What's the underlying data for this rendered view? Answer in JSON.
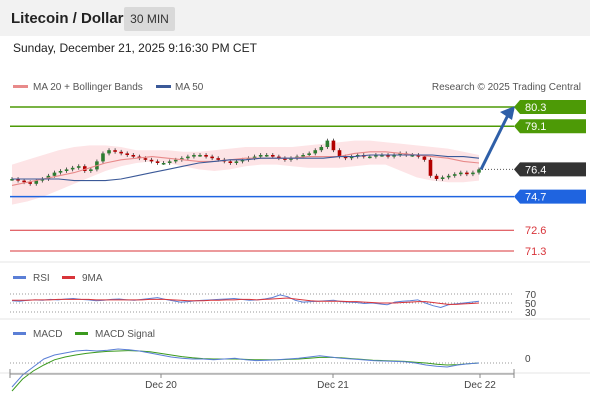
{
  "header": {
    "title": "Litecoin / Dollar",
    "interval": "30 MIN"
  },
  "datetime": "Sunday, December 21, 2025 9:16:30 PM CET",
  "legend": {
    "ma20": "MA 20 + Bollinger Bands",
    "ma50": "MA 50",
    "credit": "Research © 2025 Trading Central"
  },
  "colors": {
    "green": "#4d9a06",
    "blue": "#1f64e0",
    "red": "#d8343a",
    "dark": "#333333",
    "candle": "#b30000",
    "ma20": "#e88a8a",
    "ma50": "#3b5998",
    "band": "#fde4e6",
    "rsi": "#5b7fd6",
    "rsi_ma": "#d8343a",
    "macd": "#5b7fd6",
    "macd_signal": "#3b9a1e"
  },
  "chart_data": [
    {
      "type": "candlestick",
      "levels": [
        {
          "label": "80.3",
          "value": 80.3,
          "color": "green",
          "box": true
        },
        {
          "label": "79.1",
          "value": 79.1,
          "color": "green",
          "box": true
        },
        {
          "label": "76.4",
          "value": 76.4,
          "color": "dark",
          "box": true,
          "current": true
        },
        {
          "label": "74.7",
          "value": 74.7,
          "color": "blue",
          "box": true
        },
        {
          "label": "72.6",
          "value": 72.6,
          "color": "red",
          "box": false
        },
        {
          "label": "71.3",
          "value": 71.3,
          "color": "red",
          "box": false
        }
      ],
      "close": [
        75.8,
        75.7,
        75.6,
        75.5,
        75.7,
        75.8,
        76.0,
        76.2,
        76.3,
        76.4,
        76.5,
        76.6,
        76.3,
        76.4,
        76.9,
        77.4,
        77.6,
        77.5,
        77.4,
        77.3,
        77.2,
        77.1,
        77.0,
        76.9,
        76.8,
        76.8,
        76.9,
        77.0,
        77.1,
        77.2,
        77.3,
        77.3,
        77.2,
        77.1,
        77.0,
        76.9,
        76.8,
        76.9,
        77.0,
        77.1,
        77.2,
        77.3,
        77.3,
        77.2,
        77.1,
        77.0,
        77.1,
        77.2,
        77.3,
        77.4,
        77.6,
        77.8,
        78.2,
        77.6,
        77.2,
        77.1,
        77.2,
        77.3,
        77.2,
        77.2,
        77.3,
        77.3,
        77.2,
        77.3,
        77.4,
        77.3,
        77.3,
        77.2,
        77.0,
        76.0,
        75.8,
        75.9,
        76.0,
        76.1,
        76.2,
        76.1,
        76.2,
        76.4
      ],
      "ma20": [
        75.4,
        75.6,
        75.8,
        76.0,
        76.2,
        76.5,
        76.8,
        77.0,
        77.1,
        77.2,
        77.1,
        77.0,
        76.9,
        76.9,
        77.0,
        77.1,
        77.1,
        77.1,
        77.1,
        77.2,
        77.2,
        77.2,
        77.4,
        77.5,
        77.5,
        77.4,
        77.3,
        77.2,
        77.1,
        76.9,
        76.8
      ],
      "ma50": [
        75.8,
        75.8,
        75.8,
        75.8,
        75.7,
        75.7,
        75.7,
        75.8,
        76.0,
        76.2,
        76.4,
        76.6,
        76.8,
        76.9,
        77.0,
        77.0,
        77.1,
        77.1,
        77.1,
        77.1,
        77.1,
        77.2,
        77.2,
        77.3,
        77.3,
        77.3,
        77.3,
        77.3,
        77.2,
        77.2,
        77.1
      ],
      "band_upper": [
        76.7,
        77.0,
        77.3,
        77.6,
        77.8,
        77.9,
        77.9,
        77.8,
        77.6,
        77.6,
        77.6,
        77.5,
        77.5,
        77.6,
        77.7,
        77.8,
        77.8,
        77.8,
        77.8,
        77.9,
        78.0,
        78.1,
        78.2,
        78.2,
        78.1,
        78.0,
        77.9,
        77.8,
        77.7,
        77.5,
        77.3
      ],
      "band_lower": [
        74.2,
        74.4,
        74.7,
        75.1,
        75.5,
        75.9,
        76.3,
        76.6,
        76.8,
        76.9,
        76.8,
        76.6,
        76.4,
        76.3,
        76.4,
        76.6,
        76.7,
        76.7,
        76.6,
        76.5,
        76.5,
        76.5,
        76.6,
        76.7,
        76.7,
        76.3,
        75.9,
        75.7,
        75.6,
        75.6,
        75.7
      ],
      "projection": {
        "from": 76.4,
        "to": 80.3
      }
    },
    {
      "type": "line",
      "legend": [
        "RSI",
        "9MA"
      ],
      "y_ticks": [
        "70",
        "50",
        "30"
      ],
      "rsi": [
        55,
        54,
        56,
        57,
        56,
        58,
        57,
        59,
        60,
        58,
        57,
        55,
        56,
        58,
        59,
        57,
        56,
        58,
        60,
        62,
        58,
        55,
        52,
        53,
        55,
        56,
        57,
        58,
        59,
        60,
        58,
        56,
        57,
        59,
        62,
        68,
        64,
        56,
        52,
        53,
        54,
        55,
        56,
        53,
        52,
        51,
        49,
        50,
        48,
        46,
        52,
        54,
        55,
        57,
        50,
        44,
        40,
        46,
        48,
        50,
        52,
        54
      ],
      "rsi_ma": [
        56,
        56,
        56,
        57,
        57,
        57,
        58,
        58,
        58,
        58,
        58,
        57,
        57,
        57,
        57,
        57,
        57,
        57,
        58,
        58,
        58,
        57,
        56,
        55,
        55,
        55,
        56,
        56,
        57,
        57,
        58,
        58,
        57,
        58,
        59,
        60,
        61,
        59,
        57,
        55,
        54,
        54,
        54,
        54,
        53,
        53,
        52,
        51,
        50,
        50,
        50,
        51,
        52,
        53,
        53,
        51,
        49,
        47,
        47,
        48,
        49,
        50
      ]
    },
    {
      "type": "line",
      "legend": [
        "MACD",
        "MACD Signal"
      ],
      "y_ticks": [
        "0"
      ],
      "macd": [
        -0.6,
        -0.3,
        -0.1,
        0.1,
        0.2,
        0.25,
        0.3,
        0.32,
        0.3,
        0.32,
        0.35,
        0.33,
        0.3,
        0.25,
        0.2,
        0.15,
        0.12,
        0.1,
        0.1,
        0.08,
        0.1,
        0.12,
        0.08,
        0.06,
        0.07,
        0.08,
        0.1,
        0.12,
        0.15,
        0.18,
        0.15,
        0.12,
        0.1,
        0.08,
        0.06,
        0.05,
        0.04,
        0.03,
        0.0,
        -0.05,
        -0.08,
        -0.1,
        -0.05,
        -0.02,
        0.0
      ],
      "macd_signal": [
        -0.7,
        -0.4,
        -0.2,
        -0.05,
        0.08,
        0.15,
        0.2,
        0.24,
        0.27,
        0.29,
        0.3,
        0.31,
        0.3,
        0.28,
        0.24,
        0.2,
        0.16,
        0.13,
        0.11,
        0.1,
        0.1,
        0.1,
        0.09,
        0.08,
        0.08,
        0.08,
        0.09,
        0.1,
        0.12,
        0.14,
        0.14,
        0.13,
        0.11,
        0.09,
        0.07,
        0.06,
        0.05,
        0.04,
        0.02,
        0.0,
        -0.03,
        -0.05,
        -0.04,
        -0.02,
        0.0
      ]
    }
  ],
  "x_axis": {
    "labels": [
      "Dec 20",
      "Dec 21",
      "Dec 22"
    ]
  }
}
